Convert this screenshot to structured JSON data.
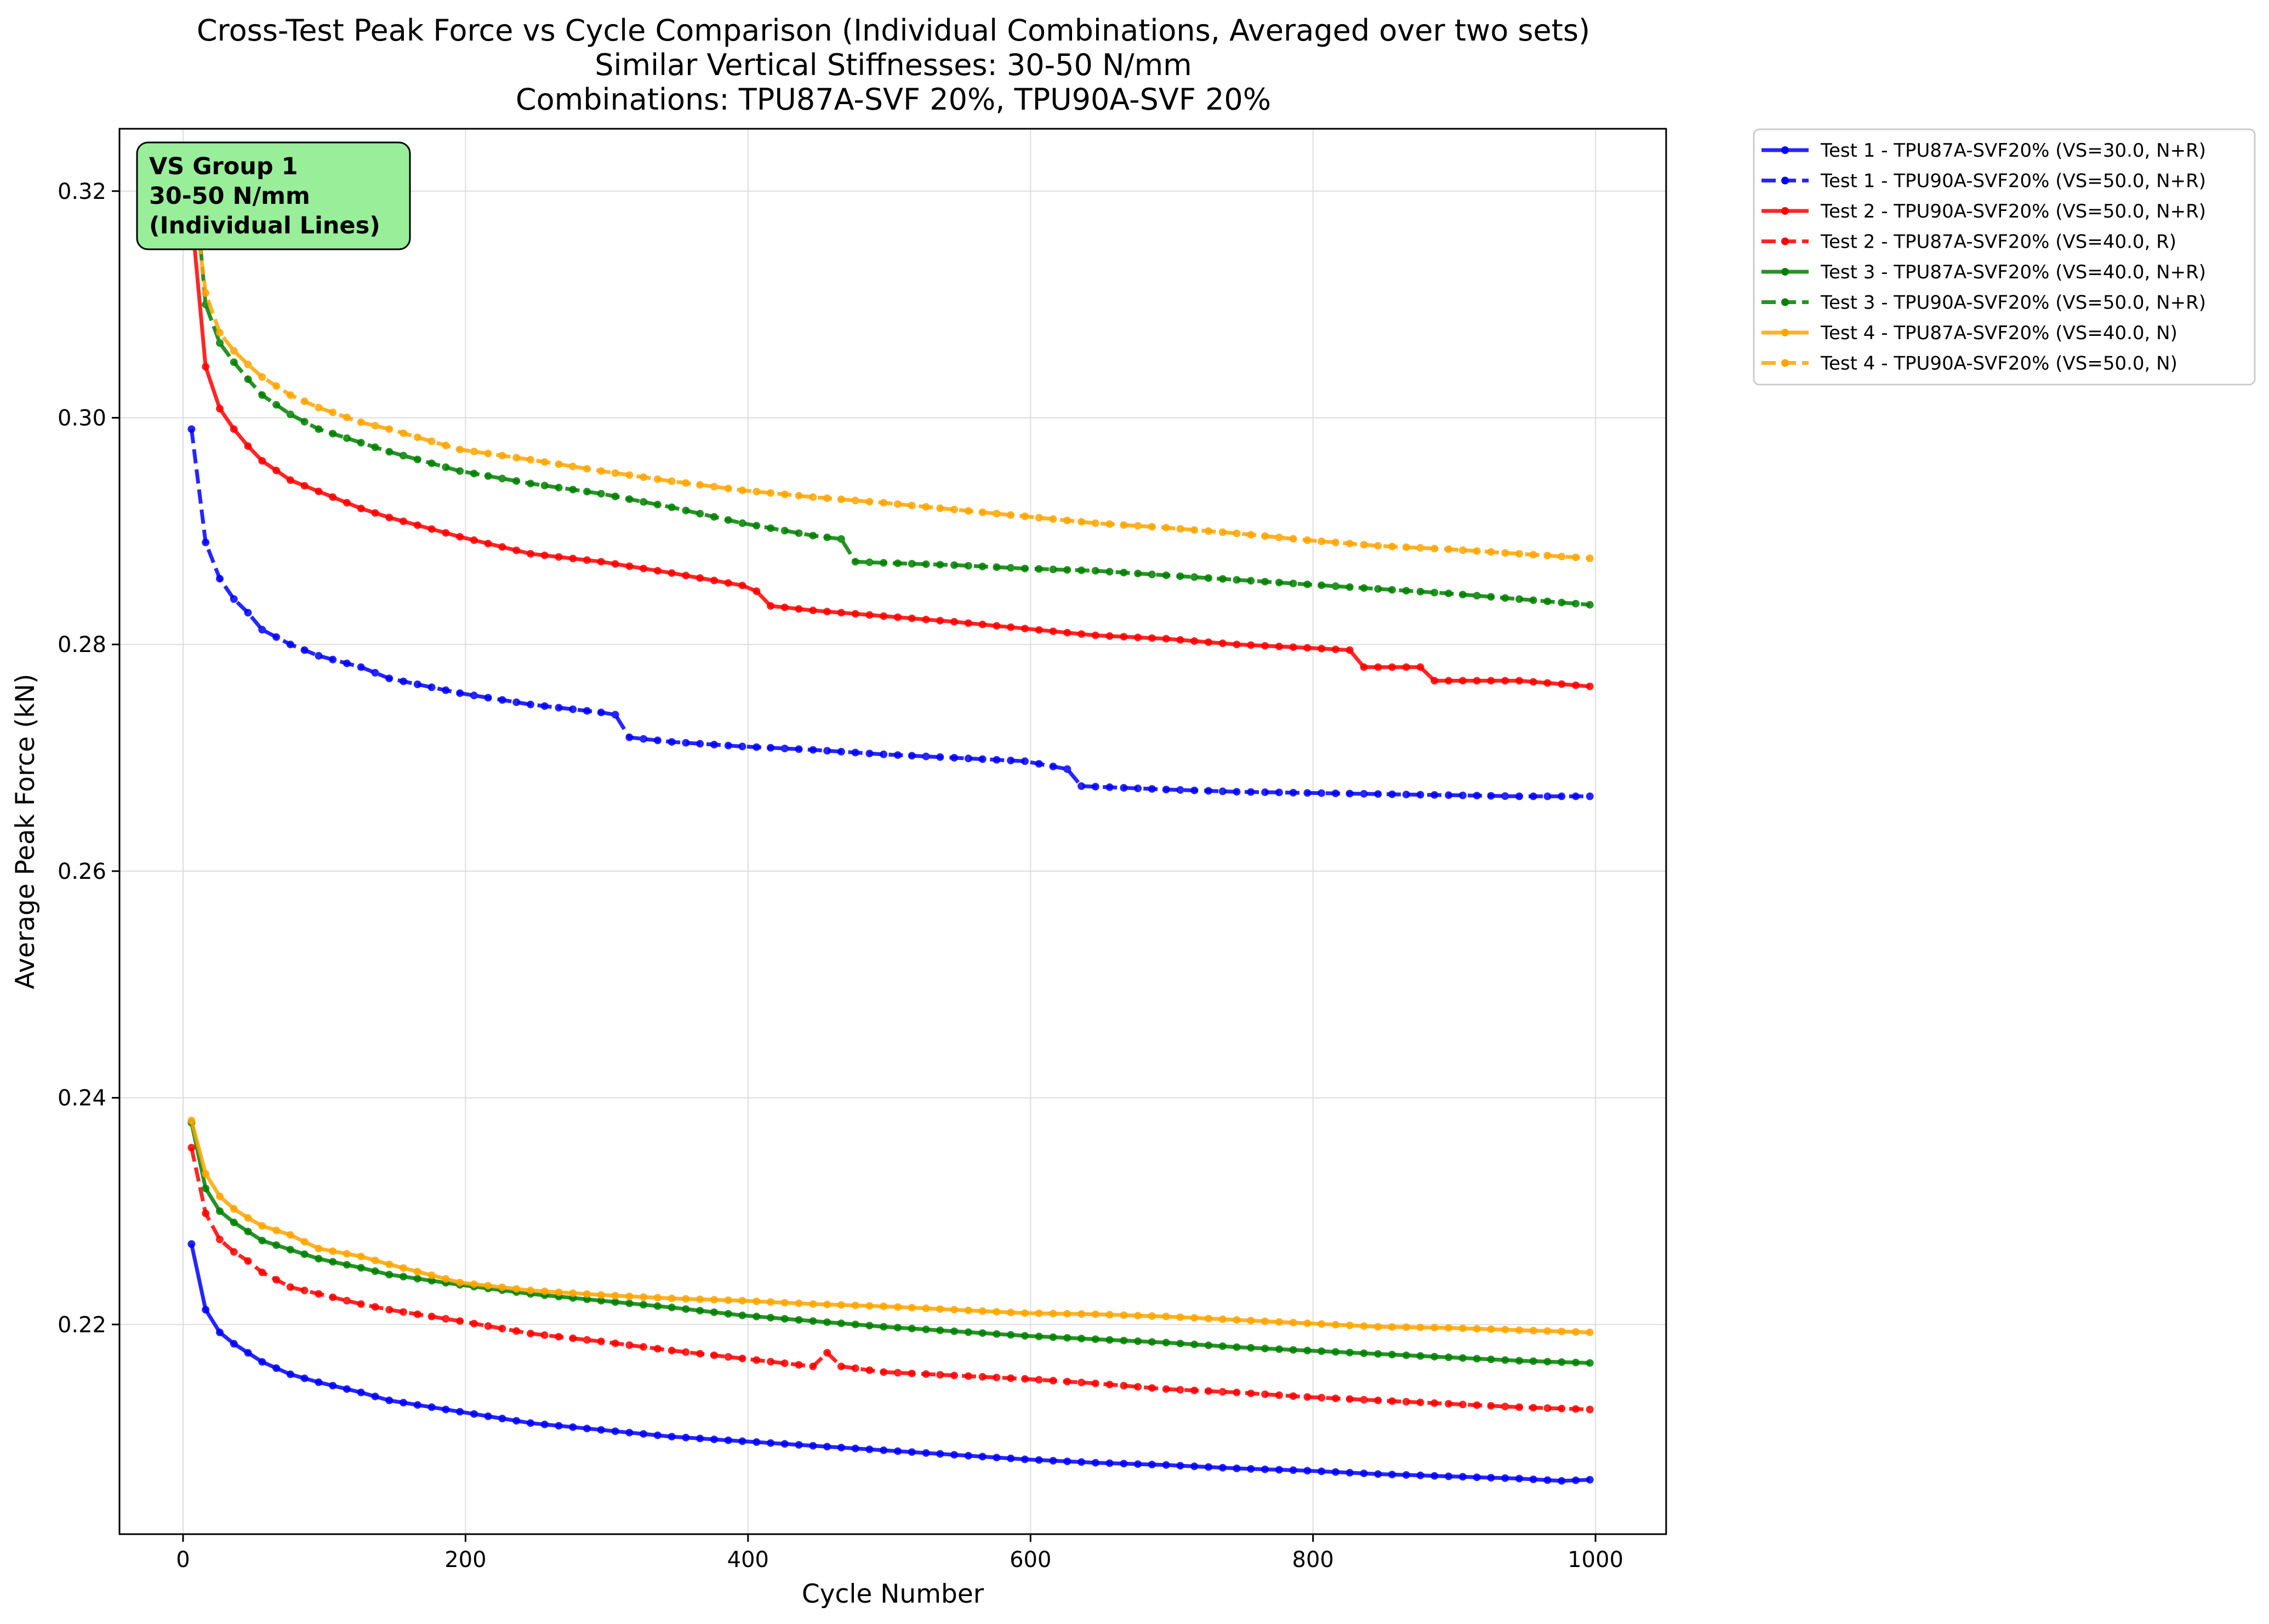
{
  "chart_data": {
    "type": "line",
    "title": [
      "Cross-Test Peak Force vs Cycle Comparison (Individual Combinations, Averaged over two sets)",
      "Similar Vertical Stiffnesses: 30-50 N/mm",
      "Combinations: TPU87A-SVF 20%, TPU90A-SVF 20%"
    ],
    "xlabel": "Cycle Number",
    "ylabel": "Average Peak Force (kN)",
    "xlim": [
      -45,
      1050
    ],
    "ylim": [
      0.2015,
      0.3255
    ],
    "xticks": [
      0,
      200,
      400,
      600,
      800,
      1000
    ],
    "xtick_labels": [
      "0",
      "200",
      "400",
      "600",
      "800",
      "1000"
    ],
    "yticks": [
      0.22,
      0.24,
      0.26,
      0.28,
      0.3,
      0.32
    ],
    "ytick_labels": [
      "0.22",
      "0.24",
      "0.26",
      "0.28",
      "0.30",
      "0.32"
    ],
    "grid": true,
    "legend_position": "outside-top-right",
    "annotation": {
      "lines": [
        "VS Group 1",
        "30-50 N/mm",
        "(Individual Lines)"
      ],
      "background": "#98ee99",
      "position": "top-left"
    },
    "series": [
      {
        "name": "Test 1 - TPU87A-SVF20% (VS=30.0, N+R)",
        "color": "#0000ff",
        "dash": "solid",
        "points": [
          [
            6,
            0.2271
          ],
          [
            16,
            0.2213
          ],
          [
            26,
            0.2193
          ],
          [
            36,
            0.2183
          ],
          [
            46,
            0.2175
          ],
          [
            56,
            0.2167
          ],
          [
            76,
            0.2156
          ],
          [
            96,
            0.2149
          ],
          [
            126,
            0.214
          ],
          [
            146,
            0.2133
          ],
          [
            196,
            0.2123
          ],
          [
            246,
            0.2113
          ],
          [
            296,
            0.2107
          ],
          [
            346,
            0.2101
          ],
          [
            396,
            0.2097
          ],
          [
            446,
            0.2093
          ],
          [
            496,
            0.2089
          ],
          [
            546,
            0.2085
          ],
          [
            596,
            0.2081
          ],
          [
            646,
            0.2078
          ],
          [
            696,
            0.2076
          ],
          [
            746,
            0.2073
          ],
          [
            796,
            0.2071
          ],
          [
            846,
            0.2068
          ],
          [
            896,
            0.2066
          ],
          [
            946,
            0.2064
          ],
          [
            976,
            0.2062
          ],
          [
            996,
            0.2063
          ]
        ]
      },
      {
        "name": "Test 1 - TPU90A-SVF20% (VS=50.0, N+R)",
        "color": "#0000ff",
        "dash": "dashed",
        "points": [
          [
            6,
            0.299
          ],
          [
            16,
            0.289
          ],
          [
            26,
            0.2858
          ],
          [
            36,
            0.284
          ],
          [
            46,
            0.2828
          ],
          [
            56,
            0.2813
          ],
          [
            76,
            0.28
          ],
          [
            96,
            0.279
          ],
          [
            126,
            0.278
          ],
          [
            146,
            0.277
          ],
          [
            196,
            0.2757
          ],
          [
            246,
            0.2747
          ],
          [
            296,
            0.274
          ],
          [
            306,
            0.2738
          ],
          [
            316,
            0.2718
          ],
          [
            346,
            0.2714
          ],
          [
            396,
            0.271
          ],
          [
            446,
            0.2707
          ],
          [
            496,
            0.2703
          ],
          [
            546,
            0.27
          ],
          [
            596,
            0.2697
          ],
          [
            626,
            0.269
          ],
          [
            636,
            0.2675
          ],
          [
            696,
            0.2672
          ],
          [
            746,
            0.267
          ],
          [
            796,
            0.2669
          ],
          [
            846,
            0.2668
          ],
          [
            896,
            0.2667
          ],
          [
            946,
            0.2666
          ],
          [
            996,
            0.2666
          ]
        ]
      },
      {
        "name": "Test 2 - TPU90A-SVF20% (VS=50.0, N+R)",
        "color": "#ff0000",
        "dash": "solid",
        "points": [
          [
            6,
            0.318
          ],
          [
            16,
            0.3045
          ],
          [
            26,
            0.3008
          ],
          [
            36,
            0.299
          ],
          [
            46,
            0.2975
          ],
          [
            56,
            0.2962
          ],
          [
            76,
            0.2945
          ],
          [
            96,
            0.2935
          ],
          [
            126,
            0.292
          ],
          [
            146,
            0.2912
          ],
          [
            196,
            0.2895
          ],
          [
            246,
            0.288
          ],
          [
            296,
            0.2873
          ],
          [
            346,
            0.2863
          ],
          [
            396,
            0.2852
          ],
          [
            406,
            0.2847
          ],
          [
            416,
            0.2834
          ],
          [
            446,
            0.283
          ],
          [
            496,
            0.2825
          ],
          [
            546,
            0.282
          ],
          [
            596,
            0.2814
          ],
          [
            646,
            0.2808
          ],
          [
            696,
            0.2805
          ],
          [
            746,
            0.28
          ],
          [
            796,
            0.2797
          ],
          [
            826,
            0.2795
          ],
          [
            836,
            0.278
          ],
          [
            876,
            0.278
          ],
          [
            886,
            0.2768
          ],
          [
            946,
            0.2768
          ],
          [
            996,
            0.2763
          ]
        ]
      },
      {
        "name": "Test 2 - TPU87A-SVF20% (VS=40.0, R)",
        "color": "#ff0000",
        "dash": "dashed",
        "points": [
          [
            6,
            0.2356
          ],
          [
            16,
            0.2298
          ],
          [
            26,
            0.2275
          ],
          [
            36,
            0.2264
          ],
          [
            46,
            0.2256
          ],
          [
            56,
            0.2246
          ],
          [
            76,
            0.2233
          ],
          [
            96,
            0.2227
          ],
          [
            126,
            0.2218
          ],
          [
            146,
            0.2213
          ],
          [
            196,
            0.2203
          ],
          [
            246,
            0.2192
          ],
          [
            296,
            0.2185
          ],
          [
            346,
            0.2177
          ],
          [
            396,
            0.217
          ],
          [
            446,
            0.2163
          ],
          [
            456,
            0.2175
          ],
          [
            466,
            0.2163
          ],
          [
            496,
            0.2158
          ],
          [
            546,
            0.2155
          ],
          [
            596,
            0.2152
          ],
          [
            646,
            0.2148
          ],
          [
            696,
            0.2143
          ],
          [
            746,
            0.214
          ],
          [
            796,
            0.2136
          ],
          [
            846,
            0.2133
          ],
          [
            896,
            0.213
          ],
          [
            946,
            0.2127
          ],
          [
            996,
            0.2125
          ]
        ]
      },
      {
        "name": "Test 3 - TPU87A-SVF20% (VS=40.0, N+R)",
        "color": "#008000",
        "dash": "solid",
        "points": [
          [
            6,
            0.2378
          ],
          [
            16,
            0.232
          ],
          [
            26,
            0.23
          ],
          [
            36,
            0.229
          ],
          [
            46,
            0.2282
          ],
          [
            56,
            0.2274
          ],
          [
            76,
            0.2266
          ],
          [
            96,
            0.2258
          ],
          [
            126,
            0.225
          ],
          [
            146,
            0.2244
          ],
          [
            196,
            0.2235
          ],
          [
            246,
            0.2227
          ],
          [
            296,
            0.2221
          ],
          [
            346,
            0.2215
          ],
          [
            396,
            0.2208
          ],
          [
            446,
            0.2203
          ],
          [
            496,
            0.2198
          ],
          [
            546,
            0.2194
          ],
          [
            596,
            0.219
          ],
          [
            646,
            0.2187
          ],
          [
            696,
            0.2184
          ],
          [
            746,
            0.218
          ],
          [
            796,
            0.2177
          ],
          [
            846,
            0.2174
          ],
          [
            896,
            0.2171
          ],
          [
            946,
            0.2168
          ],
          [
            996,
            0.2166
          ]
        ]
      },
      {
        "name": "Test 3 - TPU90A-SVF20% (VS=50.0, N+R)",
        "color": "#008000",
        "dash": "dashed",
        "points": [
          [
            6,
            0.324
          ],
          [
            16,
            0.31
          ],
          [
            26,
            0.3066
          ],
          [
            36,
            0.3049
          ],
          [
            46,
            0.3034
          ],
          [
            56,
            0.302
          ],
          [
            76,
            0.3003
          ],
          [
            96,
            0.299
          ],
          [
            126,
            0.2978
          ],
          [
            146,
            0.297
          ],
          [
            196,
            0.2953
          ],
          [
            246,
            0.2942
          ],
          [
            296,
            0.2933
          ],
          [
            346,
            0.2921
          ],
          [
            396,
            0.2907
          ],
          [
            446,
            0.2896
          ],
          [
            466,
            0.2893
          ],
          [
            476,
            0.2873
          ],
          [
            496,
            0.2872
          ],
          [
            546,
            0.287
          ],
          [
            596,
            0.2867
          ],
          [
            646,
            0.2865
          ],
          [
            696,
            0.2861
          ],
          [
            746,
            0.2857
          ],
          [
            796,
            0.2853
          ],
          [
            846,
            0.2849
          ],
          [
            896,
            0.2845
          ],
          [
            946,
            0.284
          ],
          [
            996,
            0.2835
          ]
        ]
      },
      {
        "name": "Test 4 - TPU87A-SVF20% (VS=40.0, N)",
        "color": "#ffa500",
        "dash": "solid",
        "points": [
          [
            6,
            0.238
          ],
          [
            16,
            0.2333
          ],
          [
            26,
            0.2313
          ],
          [
            36,
            0.2302
          ],
          [
            46,
            0.2294
          ],
          [
            56,
            0.2287
          ],
          [
            76,
            0.2279
          ],
          [
            96,
            0.2267
          ],
          [
            126,
            0.226
          ],
          [
            146,
            0.2253
          ],
          [
            196,
            0.2237
          ],
          [
            246,
            0.223
          ],
          [
            296,
            0.2226
          ],
          [
            346,
            0.2223
          ],
          [
            396,
            0.2221
          ],
          [
            446,
            0.2218
          ],
          [
            496,
            0.2216
          ],
          [
            546,
            0.2213
          ],
          [
            596,
            0.221
          ],
          [
            646,
            0.2209
          ],
          [
            696,
            0.2207
          ],
          [
            746,
            0.2204
          ],
          [
            796,
            0.2201
          ],
          [
            846,
            0.2198
          ],
          [
            896,
            0.2197
          ],
          [
            946,
            0.2195
          ],
          [
            996,
            0.2193
          ]
        ]
      },
      {
        "name": "Test 4 - TPU90A-SVF20% (VS=50.0, N)",
        "color": "#ffa500",
        "dash": "dashed",
        "points": [
          [
            6,
            0.321
          ],
          [
            16,
            0.311
          ],
          [
            26,
            0.3075
          ],
          [
            36,
            0.3059
          ],
          [
            46,
            0.3047
          ],
          [
            56,
            0.3036
          ],
          [
            76,
            0.302
          ],
          [
            96,
            0.3009
          ],
          [
            126,
            0.2996
          ],
          [
            146,
            0.299
          ],
          [
            196,
            0.2972
          ],
          [
            246,
            0.2963
          ],
          [
            296,
            0.2953
          ],
          [
            346,
            0.2944
          ],
          [
            396,
            0.2936
          ],
          [
            446,
            0.293
          ],
          [
            496,
            0.2925
          ],
          [
            546,
            0.2919
          ],
          [
            596,
            0.2913
          ],
          [
            646,
            0.2907
          ],
          [
            696,
            0.2903
          ],
          [
            746,
            0.2898
          ],
          [
            796,
            0.2892
          ],
          [
            846,
            0.2887
          ],
          [
            896,
            0.2884
          ],
          [
            946,
            0.288
          ],
          [
            996,
            0.2876
          ]
        ]
      }
    ]
  }
}
